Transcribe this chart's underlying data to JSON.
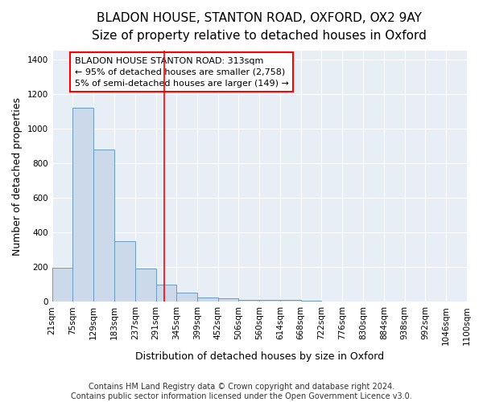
{
  "title": "BLADON HOUSE, STANTON ROAD, OXFORD, OX2 9AY",
  "subtitle": "Size of property relative to detached houses in Oxford",
  "xlabel": "Distribution of detached houses by size in Oxford",
  "ylabel": "Number of detached properties",
  "bin_labels": [
    "21sqm",
    "75sqm",
    "129sqm",
    "183sqm",
    "237sqm",
    "291sqm",
    "345sqm",
    "399sqm",
    "452sqm",
    "506sqm",
    "560sqm",
    "614sqm",
    "668sqm",
    "722sqm",
    "776sqm",
    "830sqm",
    "884sqm",
    "938sqm",
    "992sqm",
    "1046sqm",
    "1100sqm"
  ],
  "bin_edges": [
    21,
    75,
    129,
    183,
    237,
    291,
    345,
    399,
    452,
    506,
    560,
    614,
    668,
    722,
    776,
    830,
    884,
    938,
    992,
    1046,
    1100
  ],
  "bar_heights": [
    197,
    1120,
    880,
    350,
    190,
    100,
    50,
    25,
    20,
    12,
    10,
    10,
    5,
    0,
    0,
    0,
    0,
    0,
    0,
    0
  ],
  "bar_color": "#ccd9ea",
  "bar_edge_color": "#6a9bbf",
  "red_line_x": 313,
  "ylim": [
    0,
    1450
  ],
  "yticks": [
    0,
    200,
    400,
    600,
    800,
    1000,
    1200,
    1400
  ],
  "annotation_text": "BLADON HOUSE STANTON ROAD: 313sqm\n← 95% of detached houses are smaller (2,758)\n5% of semi-detached houses are larger (149) →",
  "bg_color": "#e8eef6",
  "grid_color": "#ffffff",
  "footer": "Contains HM Land Registry data © Crown copyright and database right 2024.\nContains public sector information licensed under the Open Government Licence v3.0.",
  "title_fontsize": 11,
  "subtitle_fontsize": 9.5,
  "axis_label_fontsize": 9,
  "tick_fontsize": 7.5,
  "annotation_fontsize": 8,
  "footer_fontsize": 7
}
